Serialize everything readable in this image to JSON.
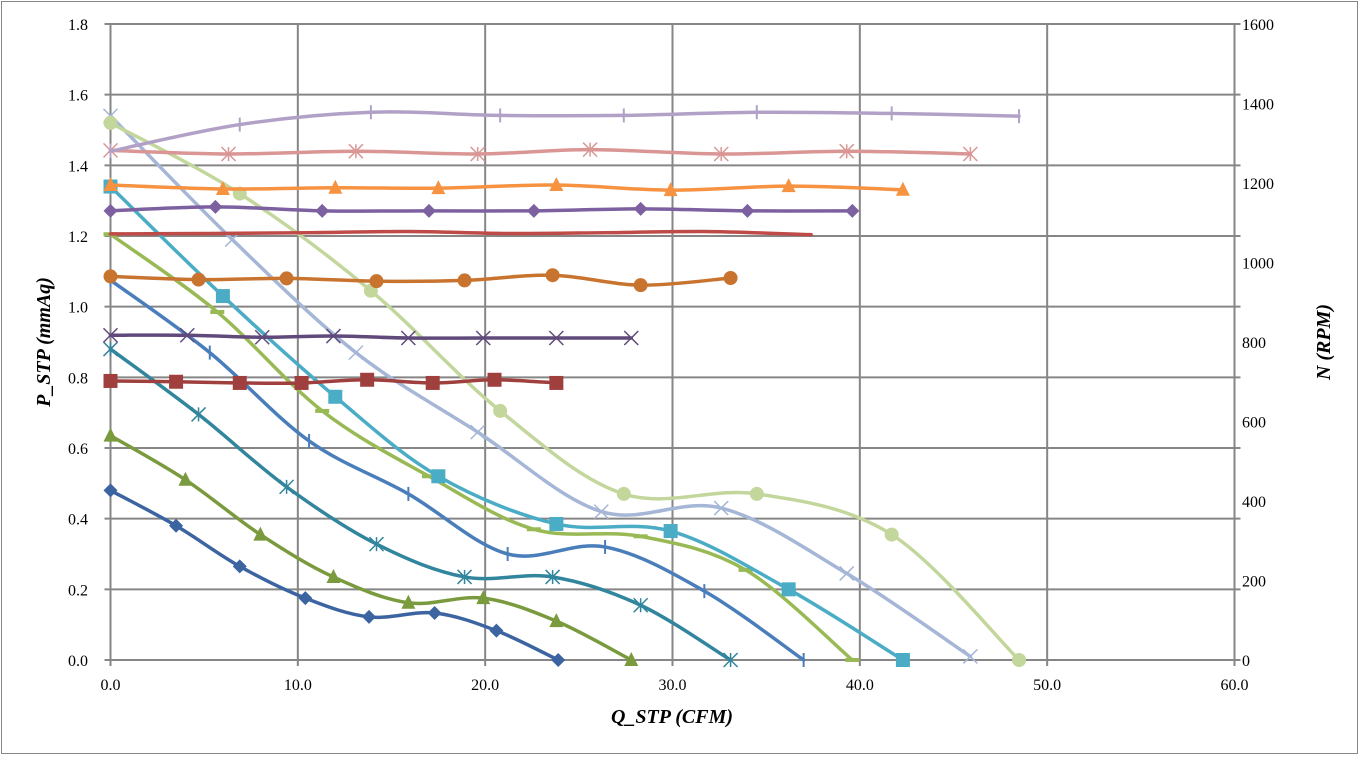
{
  "chart_data": {
    "type": "line",
    "xlabel": "Q_STP (CFM)",
    "ylabel": "P_STP (mmAq)",
    "y2label": "N (RPM)",
    "xlim": [
      0,
      60
    ],
    "ylim": [
      0,
      1.8
    ],
    "y2lim": [
      0,
      1600
    ],
    "grid": true,
    "legend": "none",
    "xticks": [
      "0.0",
      "10.0",
      "20.0",
      "30.0",
      "40.0",
      "50.0",
      "60.0"
    ],
    "yticks": [
      "0.0",
      "0.2",
      "0.4",
      "0.6",
      "0.8",
      "1.0",
      "1.2",
      "1.4",
      "1.6",
      "1.8"
    ],
    "y2ticks": [
      "0",
      "200",
      "400",
      "600",
      "800",
      "1000",
      "1200",
      "1400",
      "1600"
    ],
    "series": [
      {
        "axis": "left",
        "marker": "diamond",
        "color": "#3B64A0",
        "x": [
          0,
          3.5,
          6.9,
          10.4,
          13.8,
          17.3,
          20.6,
          23.9
        ],
        "y": [
          0.48,
          0.38,
          0.265,
          0.175,
          0.122,
          0.133,
          0.083,
          0.0
        ]
      },
      {
        "axis": "left",
        "marker": "triangle",
        "color": "#7A9A3E",
        "x": [
          0,
          4,
          8,
          11.9,
          15.9,
          19.9,
          23.8,
          27.8
        ],
        "y": [
          0.635,
          0.51,
          0.355,
          0.235,
          0.162,
          0.175,
          0.11,
          0.0
        ]
      },
      {
        "axis": "left",
        "marker": "asterisk",
        "color": "#31859C",
        "x": [
          0,
          4.7,
          9.4,
          14.2,
          18.9,
          23.6,
          28.3,
          33.1
        ],
        "y": [
          0.88,
          0.695,
          0.49,
          0.328,
          0.235,
          0.235,
          0.155,
          0.0
        ]
      },
      {
        "axis": "left",
        "marker": "plus",
        "color": "#4A7EBB",
        "x": [
          0,
          5.3,
          10.6,
          15.9,
          21.2,
          26.4,
          31.7,
          37
        ],
        "y": [
          1.075,
          0.87,
          0.62,
          0.47,
          0.3,
          0.32,
          0.195,
          0.0
        ]
      },
      {
        "axis": "left",
        "marker": "dash",
        "color": "#98B954",
        "x": [
          0,
          5.7,
          11.3,
          17,
          22.6,
          28.3,
          33.9,
          39.6
        ],
        "y": [
          1.205,
          0.985,
          0.705,
          0.52,
          0.37,
          0.35,
          0.255,
          0.0
        ]
      },
      {
        "axis": "left",
        "marker": "square",
        "color": "#4BACC6",
        "x": [
          0,
          6,
          12,
          17.5,
          23.8,
          29.9,
          36.2,
          42.3
        ],
        "y": [
          1.34,
          1.03,
          0.745,
          0.52,
          0.385,
          0.365,
          0.2,
          0.0
        ]
      },
      {
        "axis": "left",
        "marker": "x",
        "color": "#A5B6D6",
        "x": [
          0,
          6.5,
          13.1,
          19.6,
          26.2,
          32.6,
          39.3,
          45.9
        ],
        "y": [
          1.54,
          1.19,
          0.87,
          0.645,
          0.42,
          0.43,
          0.245,
          0.01
        ]
      },
      {
        "axis": "left",
        "marker": "circle",
        "color": "#C3D69B",
        "x": [
          0,
          6.9,
          13.9,
          20.8,
          27.4,
          34.5,
          41.7,
          48.5
        ],
        "y": [
          1.52,
          1.32,
          1.045,
          0.705,
          0.47,
          0.47,
          0.355,
          0.0
        ]
      },
      {
        "axis": "right",
        "marker": "square",
        "color": "#A0403E",
        "x": [
          0,
          3.5,
          6.9,
          10.2,
          13.7,
          17.2,
          20.5,
          23.8
        ],
        "y": [
          702,
          700,
          697,
          697,
          705,
          697,
          705,
          697
        ]
      },
      {
        "axis": "right",
        "marker": "x",
        "color": "#604A7B",
        "x": [
          0,
          4.1,
          8.1,
          11.9,
          15.9,
          19.9,
          23.8,
          27.8
        ],
        "y": [
          817,
          817,
          812,
          815,
          810,
          810,
          810,
          810
        ]
      },
      {
        "axis": "right",
        "marker": "circle",
        "color": "#C8742F",
        "x": [
          0,
          4.7,
          9.4,
          14.2,
          18.9,
          23.6,
          28.3,
          33.1
        ],
        "y": [
          965,
          957,
          960,
          953,
          955,
          968,
          943,
          961
        ]
      },
      {
        "axis": "right",
        "marker": "none",
        "color": "#BE4B48",
        "x": [
          0,
          5.3,
          10.6,
          15.9,
          21.2,
          26.4,
          31.7,
          37.4
        ],
        "y": [
          1072,
          1073,
          1075,
          1078,
          1073,
          1075,
          1078,
          1070
        ]
      },
      {
        "axis": "right",
        "marker": "diamond",
        "color": "#7D60A0",
        "x": [
          0,
          5.6,
          11.3,
          17,
          22.6,
          28.3,
          34,
          39.6
        ],
        "y": [
          1130,
          1140,
          1130,
          1130,
          1130,
          1135,
          1130,
          1130
        ]
      },
      {
        "axis": "right",
        "marker": "triangle",
        "color": "#F69240",
        "x": [
          0,
          6,
          12,
          17.5,
          23.8,
          29.9,
          36.2,
          42.3
        ],
        "y": [
          1195,
          1185,
          1188,
          1187,
          1195,
          1182,
          1192,
          1183
        ]
      },
      {
        "axis": "right",
        "marker": "asterisk",
        "color": "#D99694",
        "x": [
          0,
          6.3,
          13.1,
          19.6,
          25.6,
          32.6,
          39.3,
          45.9
        ],
        "y": [
          1282,
          1273,
          1280,
          1273,
          1284,
          1273,
          1280,
          1273
        ]
      },
      {
        "axis": "right",
        "marker": "plus",
        "color": "#B2A1C7",
        "x": [
          0,
          6.9,
          13.9,
          20.8,
          27.4,
          34.5,
          41.7,
          48.5
        ],
        "y": [
          1280,
          1347,
          1378,
          1370,
          1370,
          1378,
          1375,
          1368
        ]
      }
    ]
  }
}
